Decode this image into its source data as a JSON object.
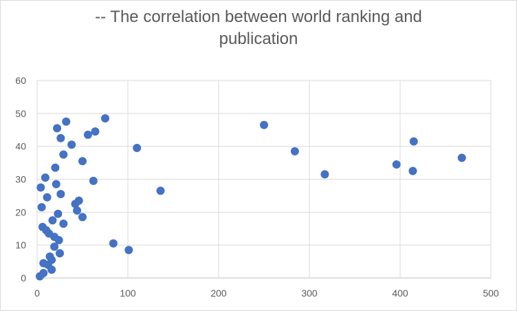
{
  "chart_data": {
    "type": "scatter",
    "title_lines": [
      "-- The correlation between world ranking and",
      "publication"
    ],
    "xlabel": "",
    "ylabel": "",
    "xlim": [
      0,
      500
    ],
    "ylim": [
      0,
      60
    ],
    "x_ticks": [
      0,
      100,
      200,
      300,
      400,
      500
    ],
    "y_ticks": [
      0,
      10,
      20,
      30,
      40,
      50,
      60
    ],
    "grid": true,
    "legend": "none",
    "marker_color": "#4472c4",
    "series": [
      {
        "points": [
          [
            3,
            0.5
          ],
          [
            7,
            1.5
          ],
          [
            7,
            4.5
          ],
          [
            12,
            4
          ],
          [
            14,
            6.5
          ],
          [
            16,
            5.5
          ],
          [
            16,
            2.5
          ],
          [
            6,
            15.5
          ],
          [
            10,
            14.5
          ],
          [
            13,
            13.5
          ],
          [
            17,
            17.5
          ],
          [
            19,
            12.5
          ],
          [
            19,
            9.5
          ],
          [
            24,
            11.5
          ],
          [
            25,
            7.5
          ],
          [
            4,
            27.5
          ],
          [
            5,
            21.5
          ],
          [
            9,
            30.5
          ],
          [
            11,
            24.5
          ],
          [
            20,
            33.5
          ],
          [
            21,
            28.5
          ],
          [
            23,
            19.5
          ],
          [
            26,
            25.5
          ],
          [
            29,
            16.5
          ],
          [
            22,
            45.5
          ],
          [
            26,
            42.5
          ],
          [
            29,
            37.5
          ],
          [
            32,
            47.5
          ],
          [
            38,
            40.5
          ],
          [
            42,
            22.5
          ],
          [
            44,
            20.5
          ],
          [
            46,
            23.5
          ],
          [
            50,
            18.5
          ],
          [
            50,
            35.5
          ],
          [
            56,
            43.5
          ],
          [
            62,
            29.5
          ],
          [
            64,
            44.5
          ],
          [
            75,
            48.5
          ],
          [
            84,
            10.5
          ],
          [
            101,
            8.5
          ],
          [
            110,
            39.5
          ],
          [
            136,
            26.5
          ],
          [
            250,
            46.5
          ],
          [
            284,
            38.5
          ],
          [
            317,
            31.5
          ],
          [
            396,
            34.5
          ],
          [
            414,
            32.5
          ],
          [
            415,
            41.5
          ],
          [
            468,
            36.5
          ]
        ]
      }
    ]
  }
}
